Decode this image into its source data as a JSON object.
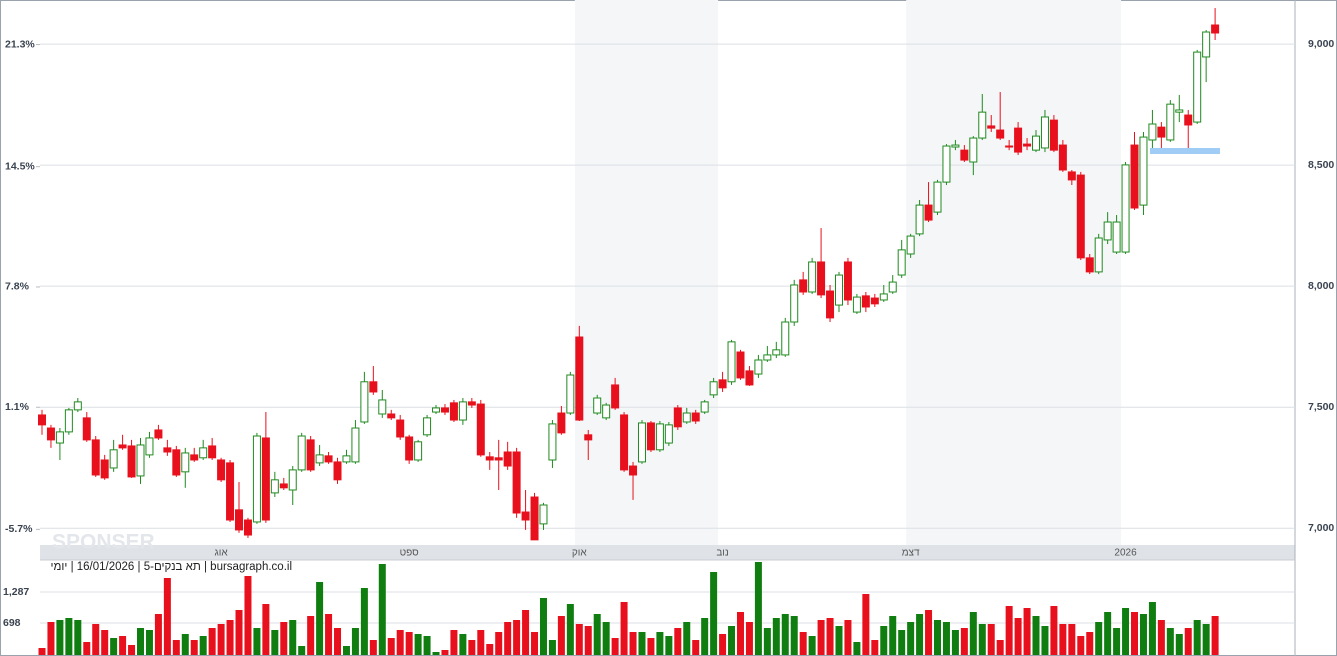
{
  "chart_data": {
    "type": "candlestick",
    "watermark": "SPONSER",
    "caption": "bursagraph.co.il | תא בנקים-5 | 16/01/2026 | יומי",
    "up_color": "#1f8a1f",
    "down_color": "#e8101c",
    "volume_up_color": "#0f7d0f",
    "volume_down_color": "#e8101c",
    "grid": true,
    "categories": [
      null,
      null,
      null,
      null,
      null,
      null,
      null,
      null,
      null,
      null,
      null,
      null,
      null,
      null,
      null,
      null,
      null,
      null,
      null,
      null,
      "אוג",
      null,
      null,
      null,
      null,
      null,
      null,
      null,
      null,
      null,
      null,
      null,
      null,
      null,
      null,
      null,
      null,
      null,
      null,
      null,
      null,
      "ספט",
      null,
      null,
      null,
      null,
      null,
      null,
      null,
      null,
      null,
      null,
      null,
      null,
      null,
      null,
      null,
      null,
      null,
      null,
      "אוק",
      null,
      null,
      null,
      null,
      null,
      null,
      null,
      null,
      null,
      null,
      null,
      null,
      null,
      null,
      null,
      "נוב",
      null,
      null,
      null,
      null,
      null,
      null,
      null,
      null,
      null,
      null,
      null,
      null,
      null,
      null,
      null,
      null,
      null,
      null,
      null,
      null,
      "דצמ",
      null,
      null,
      null,
      null,
      null,
      null,
      null,
      null,
      null,
      null,
      null,
      null,
      null,
      null,
      null,
      null,
      null,
      null,
      null,
      null,
      null,
      null,
      null,
      "2026",
      null,
      null,
      null,
      null,
      null,
      null,
      null,
      null,
      null,
      null
    ],
    "open": [
      7468,
      7414,
      7352,
      7398,
      7489,
      7456,
      7365,
      7282,
      7249,
      7344,
      7340,
      7216,
      7303,
      7406,
      7332,
      7324,
      7233,
      7303,
      7291,
      7340,
      7282,
      7270,
      7076,
      7034,
      7026,
      7373,
      7146,
      7183,
      7158,
      7241,
      7365,
      7270,
      7299,
      7274,
      7274,
      7274,
      7439,
      7605,
      7472,
      7472,
      7447,
      7377,
      7282,
      7386,
      7480,
      7497,
      7518,
      7447,
      7522,
      7513,
      7295,
      7291,
      7315,
      7315,
      7067,
      7129,
      7018,
      7282,
      7476,
      7476,
      7790,
      7386,
      7476,
      7456,
      7592,
      7468,
      7257,
      7274,
      7435,
      7324,
      7352,
      7497,
      7439,
      7476,
      7480,
      7551,
      7613,
      7605,
      7728,
      7650,
      7637,
      7695,
      7716,
      7716,
      7852,
      8026,
      7976,
      8100,
      7980,
      7922,
      8100,
      7893,
      7960,
      7951,
      7943,
      7976,
      8046,
      8133,
      8216,
      8335,
      8306,
      8430,
      8575,
      8562,
      8513,
      8612,
      8662,
      8645,
      8579,
      8653,
      8587,
      8562,
      8571,
      8686,
      8583,
      8472,
      8459,
      8117,
      8059,
      8191,
      8141,
      8141,
      8583,
      8335,
      8604,
      8657,
      8604,
      8719,
      8707,
      8678,
      8947,
      9079
    ],
    "high": [
      7489,
      7427,
      7414,
      7497,
      7538,
      7480,
      7381,
      7303,
      7365,
      7386,
      7365,
      7373,
      7398,
      7427,
      7365,
      7340,
      7332,
      7332,
      7365,
      7373,
      7291,
      7282,
      7191,
      7043,
      7394,
      7480,
      7233,
      7208,
      7257,
      7394,
      7381,
      7344,
      7315,
      7291,
      7324,
      7447,
      7646,
      7670,
      7571,
      7489,
      7468,
      7386,
      7365,
      7468,
      7509,
      7513,
      7530,
      7538,
      7538,
      7530,
      7315,
      7365,
      7357,
      7332,
      7158,
      7146,
      7105,
      7447,
      7505,
      7646,
      7836,
      7406,
      7551,
      7518,
      7621,
      7480,
      7274,
      7447,
      7443,
      7443,
      7439,
      7509,
      7497,
      7489,
      7530,
      7621,
      7646,
      7778,
      7737,
      7670,
      7716,
      7753,
      7770,
      7869,
      8026,
      8059,
      8117,
      8240,
      8005,
      8059,
      8117,
      7968,
      7976,
      7968,
      8005,
      8046,
      8191,
      8216,
      8356,
      8430,
      8439,
      8587,
      8604,
      8583,
      8620,
      8794,
      8707,
      8802,
      8604,
      8678,
      8612,
      8645,
      8728,
      8707,
      8604,
      8480,
      8472,
      8133,
      8216,
      8306,
      8294,
      8513,
      8637,
      8637,
      8728,
      8678,
      8769,
      8790,
      8728,
      8976,
      9058,
      9149
    ],
    "low": [
      7386,
      7332,
      7282,
      7386,
      7480,
      7357,
      7212,
      7200,
      7233,
      7324,
      7208,
      7183,
      7291,
      7365,
      7299,
      7212,
      7167,
      7274,
      7282,
      7282,
      7191,
      7026,
      6981,
      6960,
      7018,
      7022,
      7129,
      7158,
      7096,
      7233,
      7233,
      7257,
      7266,
      7183,
      7266,
      7266,
      7431,
      7551,
      7456,
      7447,
      7365,
      7266,
      7274,
      7377,
      7472,
      7468,
      7439,
      7427,
      7497,
      7295,
      7241,
      7158,
      7241,
      7043,
      6993,
      6952,
      6993,
      7249,
      7386,
      7468,
      7443,
      7282,
      7468,
      7447,
      7489,
      7233,
      7117,
      7266,
      7315,
      7315,
      7340,
      7406,
      7431,
      7431,
      7472,
      7538,
      7563,
      7592,
      7613,
      7588,
      7621,
      7687,
      7703,
      7708,
      7836,
      7964,
      7968,
      7951,
      7852,
      7893,
      7922,
      7885,
      7893,
      7914,
      7935,
      7968,
      8034,
      8117,
      8207,
      8265,
      8294,
      8418,
      8562,
      8513,
      8459,
      8604,
      8637,
      8604,
      8562,
      8542,
      8562,
      8554,
      8554,
      8554,
      8472,
      8418,
      8108,
      8050,
      8050,
      8174,
      8133,
      8133,
      8315,
      8294,
      8571,
      8571,
      8596,
      8678,
      8571,
      8670,
      8843,
      9017
    ],
    "close": [
      7427,
      7365,
      7398,
      7489,
      7522,
      7365,
      7220,
      7208,
      7324,
      7332,
      7212,
      7344,
      7373,
      7373,
      7315,
      7220,
      7311,
      7282,
      7332,
      7291,
      7200,
      7034,
      6993,
      6972,
      7381,
      7034,
      7200,
      7167,
      7241,
      7381,
      7241,
      7303,
      7274,
      7200,
      7299,
      7414,
      7605,
      7563,
      7530,
      7456,
      7377,
      7282,
      7357,
      7456,
      7497,
      7480,
      7447,
      7522,
      7509,
      7303,
      7282,
      7282,
      7257,
      7063,
      7034,
      6952,
      7096,
      7431,
      7394,
      7633,
      7447,
      7365,
      7538,
      7509,
      7497,
      7241,
      7220,
      7435,
      7324,
      7431,
      7427,
      7419,
      7476,
      7443,
      7522,
      7605,
      7580,
      7770,
      7621,
      7592,
      7695,
      7716,
      7737,
      7852,
      8005,
      7976,
      8100,
      7964,
      7869,
      8046,
      7943,
      7955,
      7914,
      7927,
      7968,
      8017,
      8150,
      8207,
      8335,
      8273,
      8430,
      8579,
      8583,
      8521,
      8612,
      8719,
      8653,
      8612,
      8575,
      8554,
      8579,
      8620,
      8699,
      8562,
      8480,
      8439,
      8117,
      8059,
      8199,
      8265,
      8265,
      8501,
      8323,
      8616,
      8670,
      8616,
      8752,
      8728,
      8666,
      8967,
      9050,
      9046
    ],
    "volume": [
      223,
      717,
      755,
      793,
      755,
      337,
      679,
      565,
      413,
      451,
      280,
      603,
      565,
      869,
      1553,
      375,
      489,
      375,
      451,
      603,
      679,
      755,
      945,
      1591,
      603,
      1059,
      565,
      717,
      755,
      261,
      831,
      1477,
      869,
      603,
      261,
      603,
      1363,
      375,
      1819,
      413,
      565,
      527,
      489,
      451,
      147,
      185,
      565,
      489,
      375,
      565,
      299,
      527,
      717,
      755,
      945,
      527,
      1173,
      375,
      831,
      1059,
      679,
      641,
      869,
      717,
      413,
      1097,
      527,
      527,
      413,
      527,
      451,
      603,
      717,
      375,
      793,
      1667,
      489,
      641,
      907,
      717,
      1857,
      603,
      793,
      869,
      831,
      527,
      451,
      755,
      793,
      641,
      755,
      337,
      1249,
      375,
      641,
      831,
      565,
      717,
      869,
      945,
      755,
      717,
      565,
      603,
      907,
      679,
      679,
      375,
      1021,
      793,
      983,
      831,
      641,
      1021,
      679,
      679,
      451,
      527,
      717,
      907,
      603,
      983,
      907,
      869,
      1097,
      755,
      603,
      489,
      603,
      755,
      679,
      831
    ],
    "ylim": [
      6939,
      9174
    ],
    "yticks": [
      {
        "value": 7000,
        "label": "7,000"
      },
      {
        "value": 7500,
        "label": "7,500"
      },
      {
        "value": 8000,
        "label": "8,000"
      },
      {
        "value": 8500,
        "label": "8,500"
      },
      {
        "value": 9000,
        "label": "9,000"
      }
    ],
    "y2lim": [
      -6.46,
      23.67
    ],
    "y2ticks": [
      {
        "value": -5.7,
        "label": "-5.7%"
      },
      {
        "value": 1.1,
        "label": "1.1%"
      },
      {
        "value": 7.8,
        "label": "7.8%"
      },
      {
        "value": 14.5,
        "label": "14.5%"
      },
      {
        "value": 21.3,
        "label": "21.3%"
      }
    ],
    "volume_lim": [
      90,
      1895
    ],
    "volume_ticks": [
      698,
      {
        "value": 1287,
        "label": "1,287"
      }
    ]
  }
}
